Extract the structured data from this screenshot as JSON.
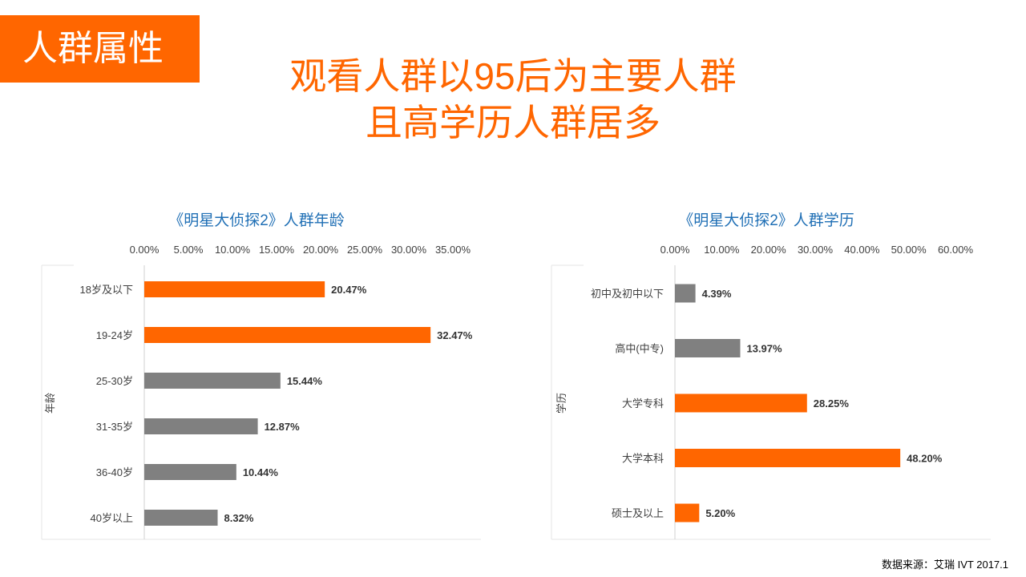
{
  "section_tag": "人群属性",
  "headline": {
    "line1": "观看人群以95后为主要人群",
    "line2": "且高学历人群居多"
  },
  "chart_data": [
    {
      "type": "bar",
      "orientation": "horizontal",
      "title": "《明星大侦探2》人群年龄",
      "ylabel": "年龄",
      "categories": [
        "18岁及以下",
        "19-24岁",
        "25-30岁",
        "31-35岁",
        "36-40岁",
        "40岁以上"
      ],
      "values": [
        20.47,
        32.47,
        15.44,
        12.87,
        10.44,
        8.32
      ],
      "data_labels": [
        "20.47%",
        "32.47%",
        "15.44%",
        "12.87%",
        "10.44%",
        "8.32%"
      ],
      "bar_colors": [
        "#ff6600",
        "#ff6600",
        "#808080",
        "#808080",
        "#808080",
        "#808080"
      ],
      "x_ticks": [
        "0.00%",
        "5.00%",
        "10.00%",
        "15.00%",
        "20.00%",
        "25.00%",
        "30.00%",
        "35.00%"
      ],
      "xlim": [
        0,
        35
      ],
      "x_axis_position": "top",
      "grid": false
    },
    {
      "type": "bar",
      "orientation": "horizontal",
      "title": "《明星大侦探2》人群学历",
      "ylabel": "学历",
      "categories": [
        "初中及初中以下",
        "高中(中专)",
        "大学专科",
        "大学本科",
        "硕士及以上"
      ],
      "values": [
        4.39,
        13.97,
        28.25,
        48.2,
        5.2
      ],
      "data_labels": [
        "4.39%",
        "13.97%",
        "28.25%",
        "48.20%",
        "5.20%"
      ],
      "bar_colors": [
        "#808080",
        "#808080",
        "#ff6600",
        "#ff6600",
        "#ff6600"
      ],
      "x_ticks": [
        "0.00%",
        "10.00%",
        "20.00%",
        "30.00%",
        "40.00%",
        "50.00%",
        "60.00%"
      ],
      "xlim": [
        0,
        60
      ],
      "x_axis_position": "top",
      "grid": false
    }
  ],
  "source": "数据来源：艾瑞 IVT  2017.1"
}
